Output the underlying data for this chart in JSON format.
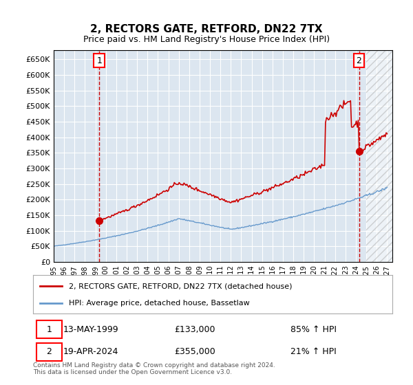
{
  "title": "2, RECTORS GATE, RETFORD, DN22 7TX",
  "subtitle": "Price paid vs. HM Land Registry's House Price Index (HPI)",
  "legend_line1": "2, RECTORS GATE, RETFORD, DN22 7TX (detached house)",
  "legend_line2": "HPI: Average price, detached house, Bassetlaw",
  "sale1_label": "1",
  "sale1_date": "13-MAY-1999",
  "sale1_price": "£133,000",
  "sale1_hpi": "85% ↑ HPI",
  "sale1_year": 1999.37,
  "sale1_value": 133000,
  "sale2_label": "2",
  "sale2_date": "19-APR-2024",
  "sale2_price": "£355,000",
  "sale2_hpi": "21% ↑ HPI",
  "sale2_year": 2024.3,
  "sale2_value": 355000,
  "hpi_color": "#6699cc",
  "price_color": "#cc0000",
  "marker_color": "#cc0000",
  "xlabel": "",
  "ylabel": "",
  "ylim": [
    0,
    680000
  ],
  "xlim_start": 1995.0,
  "xlim_end": 2027.5,
  "footer": "Contains HM Land Registry data © Crown copyright and database right 2024.\nThis data is licensed under the Open Government Licence v3.0.",
  "background_color": "#dce6f0",
  "plot_bg": "#dce6f0",
  "grid_color": "#ffffff",
  "yticks": [
    0,
    50000,
    100000,
    150000,
    200000,
    250000,
    300000,
    350000,
    400000,
    450000,
    500000,
    550000,
    600000,
    650000
  ],
  "ytick_labels": [
    "£0",
    "£50K",
    "£100K",
    "£150K",
    "£200K",
    "£250K",
    "£300K",
    "£350K",
    "£400K",
    "£450K",
    "£500K",
    "£550K",
    "£600K",
    "£650K"
  ],
  "xtick_years": [
    1995,
    1996,
    1997,
    1998,
    1999,
    2000,
    2001,
    2002,
    2003,
    2004,
    2005,
    2006,
    2007,
    2008,
    2009,
    2010,
    2011,
    2012,
    2013,
    2014,
    2015,
    2016,
    2017,
    2018,
    2019,
    2020,
    2021,
    2022,
    2023,
    2024,
    2025,
    2026,
    2027
  ]
}
